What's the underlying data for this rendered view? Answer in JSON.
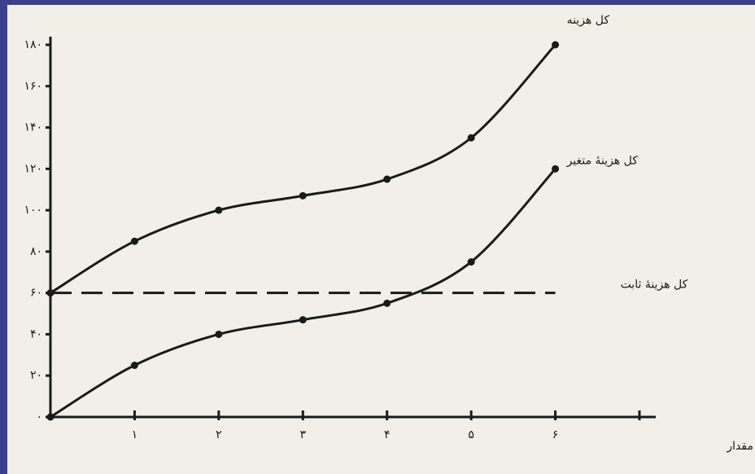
{
  "chart_data": {
    "type": "line",
    "x_label": "مقدار",
    "x": [
      0,
      1,
      2,
      3,
      4,
      5,
      6
    ],
    "series": [
      {
        "name": "کل هزینه",
        "color": "#1a1a1a",
        "values": [
          60,
          85,
          100,
          107,
          115,
          135,
          180
        ],
        "markers": true,
        "dashed": false
      },
      {
        "name": "کل هزینهٔ متغیر",
        "color": "#1a1a1a",
        "values": [
          0,
          25,
          40,
          47,
          55,
          75,
          120
        ],
        "markers": true,
        "dashed": false
      },
      {
        "name": "کل هزینهٔ ثابت",
        "color": "#1a1a1a",
        "values": [
          60,
          60,
          60,
          60,
          60,
          60,
          60
        ],
        "markers": false,
        "dashed": true
      }
    ],
    "xlim": [
      0,
      7
    ],
    "ylim": [
      0,
      180
    ],
    "xticks": [
      {
        "value": 1,
        "label": "۱"
      },
      {
        "value": 2,
        "label": "۲"
      },
      {
        "value": 3,
        "label": "۳"
      },
      {
        "value": 4,
        "label": "۴"
      },
      {
        "value": 5,
        "label": "۵"
      },
      {
        "value": 6,
        "label": "۶"
      },
      {
        "value": 7,
        "label": null
      }
    ],
    "yticks": [
      {
        "value": 0,
        "label": "۰"
      },
      {
        "value": 20,
        "label": "۲۰"
      },
      {
        "value": 40,
        "label": "۴۰"
      },
      {
        "value": 60,
        "label": "۶۰"
      },
      {
        "value": 80,
        "label": "۸۰"
      },
      {
        "value": 100,
        "label": "۱۰۰"
      },
      {
        "value": 120,
        "label": "۱۲۰"
      },
      {
        "value": 140,
        "label": "۱۴۰"
      },
      {
        "value": 160,
        "label": "۱۶۰"
      },
      {
        "value": 180,
        "label": "۱۸۰"
      }
    ],
    "grid": false
  }
}
